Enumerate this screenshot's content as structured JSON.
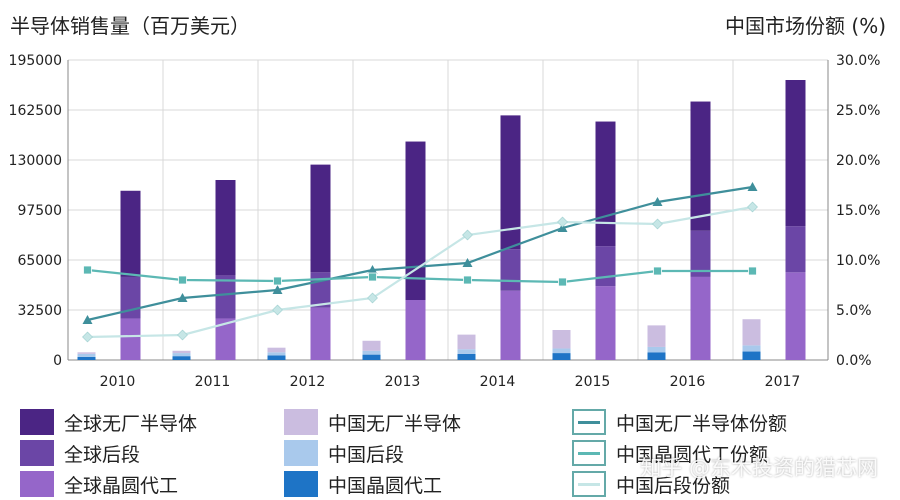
{
  "header": {
    "left_title": "半导体销售量（百万美元）",
    "right_title": "中国市场份额 (%)"
  },
  "watermark": "知乎 @东木投资的猎芯网",
  "colors": {
    "global_fabless": "#4b2584",
    "global_backend": "#6b46a6",
    "global_foundry": "#9566c9",
    "china_fabless": "#cbbde0",
    "china_backend": "#a9c9ec",
    "china_foundry": "#1e74c6",
    "line_fabless_share": "#3f8f9b",
    "line_foundry_share": "#5cb8b4",
    "line_backend_share": "#c6e6e6"
  },
  "chart_data": {
    "type": "bar",
    "title": "",
    "ylabel": "半导体销售量（百万美元）",
    "y2label": "中国市场份额 (%)",
    "ylim": [
      0,
      195000
    ],
    "y2lim": [
      0,
      30
    ],
    "yticks": [
      "0",
      "32500",
      "65000",
      "97500",
      "130000",
      "162500",
      "195000"
    ],
    "y2ticks": [
      "0.0%",
      "5.0%",
      "10.0%",
      "15.0%",
      "20.0%",
      "25.0%",
      "30.0%"
    ],
    "categories": [
      "2010",
      "2011",
      "2012",
      "2013",
      "2014",
      "2015",
      "2016",
      "2017"
    ],
    "stacked_series": {
      "global": [
        {
          "name": "全球晶圆代工",
          "key": "global_foundry",
          "values": [
            27000,
            27000,
            34000,
            39000,
            45000,
            48000,
            54000,
            57000
          ]
        },
        {
          "name": "全球后段",
          "key": "global_backend",
          "values": [
            27000,
            28000,
            23000,
            0,
            27000,
            26000,
            30000,
            30000
          ]
        },
        {
          "name": "全球无厂半导体",
          "key": "global_fabless",
          "values": [
            56000,
            62000,
            70000,
            103000,
            87000,
            81000,
            84000,
            95000
          ]
        }
      ],
      "china": [
        {
          "name": "中国晶圆代工",
          "key": "china_foundry",
          "values": [
            2000,
            2500,
            3000,
            3500,
            4000,
            4500,
            5000,
            5500
          ]
        },
        {
          "name": "中国后段",
          "key": "china_backend",
          "values": [
            2000,
            2000,
            2000,
            2500,
            3000,
            3000,
            3500,
            4000
          ]
        },
        {
          "name": "中国无厂半导体",
          "key": "china_fabless",
          "values": [
            1000,
            1500,
            3000,
            6500,
            9500,
            12000,
            14000,
            17000
          ]
        }
      ]
    },
    "line_series": [
      {
        "name": "中国无厂半导体份额",
        "key": "line_fabless_share",
        "marker": "triangle",
        "values": [
          4.0,
          6.2,
          7.0,
          9.0,
          9.7,
          13.2,
          15.8,
          17.3
        ]
      },
      {
        "name": "中国晶圆代工份额",
        "key": "line_foundry_share",
        "marker": "square",
        "values": [
          9.0,
          8.0,
          7.9,
          8.3,
          8.0,
          7.8,
          8.9,
          8.9
        ]
      },
      {
        "name": "中国后段份额",
        "key": "line_backend_share",
        "marker": "diamond",
        "values": [
          2.3,
          2.5,
          5.0,
          6.2,
          12.5,
          13.8,
          13.6,
          15.3
        ]
      }
    ]
  },
  "legend": [
    {
      "label": "全球无厂半导体",
      "key": "global_fabless",
      "kind": "box"
    },
    {
      "label": "全球后段",
      "key": "global_backend",
      "kind": "box"
    },
    {
      "label": "全球晶圆代工",
      "key": "global_foundry",
      "kind": "box"
    },
    {
      "label": "中国无厂半导体",
      "key": "china_fabless",
      "kind": "box"
    },
    {
      "label": "中国后段",
      "key": "china_backend",
      "kind": "box"
    },
    {
      "label": "中国晶圆代工",
      "key": "china_foundry",
      "kind": "box"
    },
    {
      "label": "中国无厂半导体份额",
      "key": "line_fabless_share",
      "kind": "line"
    },
    {
      "label": "中国晶圆代工份额",
      "key": "line_foundry_share",
      "kind": "line"
    },
    {
      "label": "中国后段份额",
      "key": "line_backend_share",
      "kind": "line"
    }
  ]
}
